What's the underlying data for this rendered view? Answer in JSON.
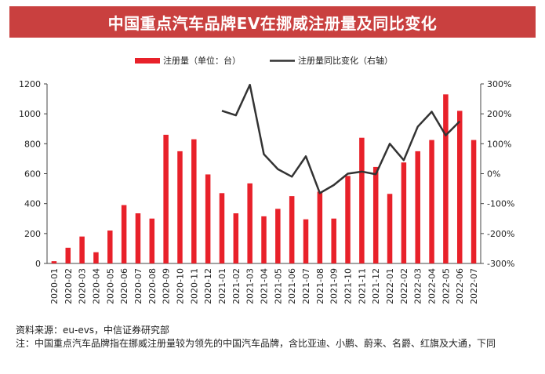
{
  "header": {
    "title": "中国重点汽车品牌EV在挪威注册量及同比变化"
  },
  "footer": {
    "source": "资料来源：eu-evs，中信证券研究部",
    "note": "注：中国重点汽车品牌指在挪威注册量较为领先的中国汽车品牌，含比亚迪、小鹏、蔚来、名爵、红旗及大通，下同"
  },
  "colors": {
    "bar": "#e8212a",
    "line": "#333333",
    "title_bg": "#c9403f"
  },
  "chart_data": {
    "type": "bar",
    "legend_position": "top-center",
    "grid": false,
    "categories": [
      "2020-01",
      "2020-02",
      "2020-03",
      "2020-04",
      "2020-05",
      "2020-06",
      "2020-07",
      "2020-08",
      "2020-09",
      "2020-10",
      "2020-11",
      "2020-12",
      "2021-01",
      "2021-02",
      "2021-03",
      "2021-04",
      "2021-05",
      "2021-06",
      "2021-07",
      "2021-08",
      "2021-09",
      "2021-10",
      "2021-11",
      "2021-12",
      "2022-01",
      "2022-02",
      "2022-03",
      "2022-04",
      "2022-05",
      "2022-06",
      "2022-07"
    ],
    "series": [
      {
        "name": "注册量（单位：台）",
        "type": "bar",
        "axis": "left",
        "values": [
          15,
          105,
          180,
          75,
          220,
          390,
          335,
          300,
          860,
          750,
          830,
          595,
          470,
          335,
          535,
          315,
          365,
          450,
          295,
          480,
          300,
          585,
          840,
          645,
          465,
          675,
          750,
          825,
          1130,
          1020,
          825
        ]
      },
      {
        "name": "注册量同比变化（右轴）",
        "type": "line",
        "axis": "right",
        "unit": "%",
        "values": [
          null,
          null,
          null,
          null,
          null,
          null,
          null,
          null,
          null,
          null,
          null,
          null,
          210,
          195,
          297,
          65,
          15,
          -10,
          58,
          -65,
          -38,
          0,
          7,
          -2,
          100,
          45,
          157,
          207,
          128,
          175,
          null
        ]
      }
    ],
    "y_left": {
      "min": 0,
      "max": 1200,
      "ticks": [
        0,
        200,
        400,
        600,
        800,
        1000,
        1200
      ]
    },
    "y_right": {
      "min": -300,
      "max": 300,
      "ticks": [
        "-300%",
        "-200%",
        "-100%",
        "0%",
        "100%",
        "200%",
        "300%"
      ]
    }
  }
}
